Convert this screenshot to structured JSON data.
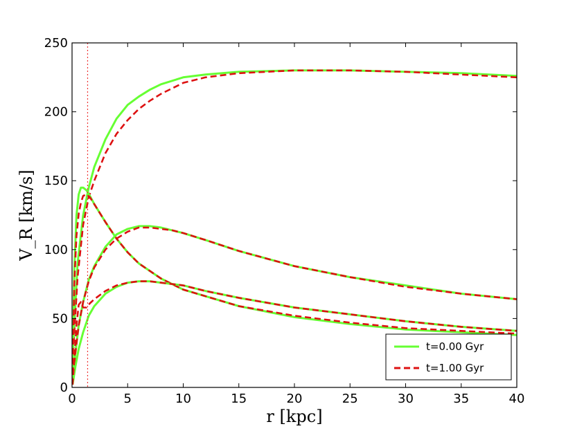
{
  "chart_data": {
    "type": "line",
    "xlabel": "r [kpc]",
    "ylabel": "V_R [km/s]",
    "xlim": [
      0,
      40
    ],
    "ylim": [
      0,
      250
    ],
    "xticks": [
      0,
      5,
      10,
      15,
      20,
      25,
      30,
      35,
      40
    ],
    "yticks": [
      0,
      50,
      100,
      150,
      200,
      250
    ],
    "grid": false,
    "legend_position": "bottom-right",
    "legend": [
      {
        "label": "t=0.00 Gyr",
        "color": "#66ff33",
        "style": "solid"
      },
      {
        "label": "t=1.00 Gyr",
        "color": "#dd1111",
        "style": "dashed"
      }
    ],
    "vline": {
      "x": 1.4,
      "color": "#ee3333",
      "style": "dotted"
    },
    "series": [
      {
        "time": "t=0.00 Gyr",
        "color": "#66ff33",
        "style": "solid",
        "x": [
          0.1,
          0.5,
          1,
          1.5,
          2,
          3,
          4,
          5,
          6,
          7,
          8,
          10,
          12,
          15,
          20,
          25,
          30,
          35,
          40
        ],
        "y": [
          30,
          90,
          125,
          145,
          160,
          180,
          195,
          205,
          211,
          216,
          220,
          225,
          227,
          229,
          230,
          230,
          229,
          228,
          226
        ]
      },
      {
        "time": "t=1.00 Gyr",
        "color": "#dd1111",
        "style": "dashed",
        "x": [
          0.1,
          0.5,
          1,
          1.5,
          2,
          3,
          4,
          5,
          6,
          7,
          8,
          10,
          12,
          15,
          20,
          25,
          30,
          35,
          40
        ],
        "y": [
          25,
          80,
          118,
          138,
          150,
          170,
          184,
          194,
          202,
          208,
          213,
          221,
          225,
          228,
          230,
          230,
          229,
          227,
          225
        ]
      },
      {
        "time": "t=0.00 Gyr",
        "color": "#66ff33",
        "style": "solid",
        "x": [
          0.05,
          0.2,
          0.4,
          0.6,
          0.8,
          1,
          1.3,
          1.6,
          2,
          3,
          4,
          5,
          6,
          8,
          10,
          15,
          20,
          25,
          30,
          35,
          40
        ],
        "y": [
          10,
          85,
          125,
          140,
          145,
          145,
          143,
          139,
          133,
          120,
          108,
          98,
          90,
          79,
          71,
          59,
          51,
          46,
          42,
          40,
          38
        ]
      },
      {
        "time": "t=1.00 Gyr",
        "color": "#dd1111",
        "style": "dashed",
        "x": [
          0.05,
          0.2,
          0.4,
          0.6,
          0.8,
          1,
          1.3,
          1.6,
          2,
          3,
          4,
          5,
          6,
          8,
          10,
          15,
          20,
          25,
          30,
          35,
          40
        ],
        "y": [
          10,
          75,
          110,
          126,
          134,
          139,
          140,
          138,
          133,
          120,
          108,
          98,
          90,
          79,
          71,
          59,
          52,
          47,
          43,
          41,
          39
        ]
      },
      {
        "time": "t=0.00 Gyr",
        "color": "#66ff33",
        "style": "solid",
        "x": [
          0.05,
          0.3,
          0.6,
          1,
          1.5,
          2,
          3,
          4,
          5,
          6,
          7,
          8,
          9,
          10,
          12,
          15,
          20,
          25,
          30,
          35,
          40
        ],
        "y": [
          3,
          25,
          45,
          62,
          78,
          88,
          102,
          111,
          115,
          117,
          117,
          116,
          114,
          112,
          107,
          99,
          88,
          80,
          74,
          68,
          64
        ]
      },
      {
        "time": "t=1.00 Gyr",
        "color": "#dd1111",
        "style": "dashed",
        "x": [
          0.05,
          0.3,
          0.6,
          1,
          1.5,
          2,
          3,
          4,
          5,
          6,
          7,
          8,
          9,
          10,
          12,
          15,
          20,
          25,
          30,
          35,
          40
        ],
        "y": [
          3,
          25,
          45,
          62,
          77,
          87,
          100,
          108,
          113,
          116,
          116,
          115,
          114,
          112,
          107,
          99,
          88,
          80,
          73,
          68,
          64
        ]
      },
      {
        "time": "t=0.00 Gyr",
        "color": "#66ff33",
        "style": "solid",
        "x": [
          0.05,
          0.3,
          0.6,
          1,
          1.5,
          2,
          3,
          4,
          5,
          6,
          7,
          8,
          10,
          12,
          15,
          20,
          25,
          30,
          35,
          40
        ],
        "y": [
          2,
          15,
          28,
          40,
          52,
          59,
          68,
          73,
          76,
          77,
          77,
          76,
          74,
          70,
          65,
          58,
          53,
          48,
          44,
          41
        ]
      },
      {
        "time": "t=1.00 Gyr",
        "color": "#dd1111",
        "style": "dashed",
        "x": [
          0.05,
          0.2,
          0.4,
          0.6,
          0.8,
          1,
          1.3,
          1.6,
          2,
          3,
          4,
          5,
          6,
          7,
          8,
          10,
          12,
          15,
          20,
          25,
          30,
          35,
          40
        ],
        "y": [
          2,
          20,
          45,
          60,
          62,
          58,
          58,
          61,
          64,
          70,
          74,
          76,
          77,
          77,
          76,
          74,
          70,
          65,
          58,
          53,
          48,
          44,
          41
        ]
      }
    ]
  }
}
